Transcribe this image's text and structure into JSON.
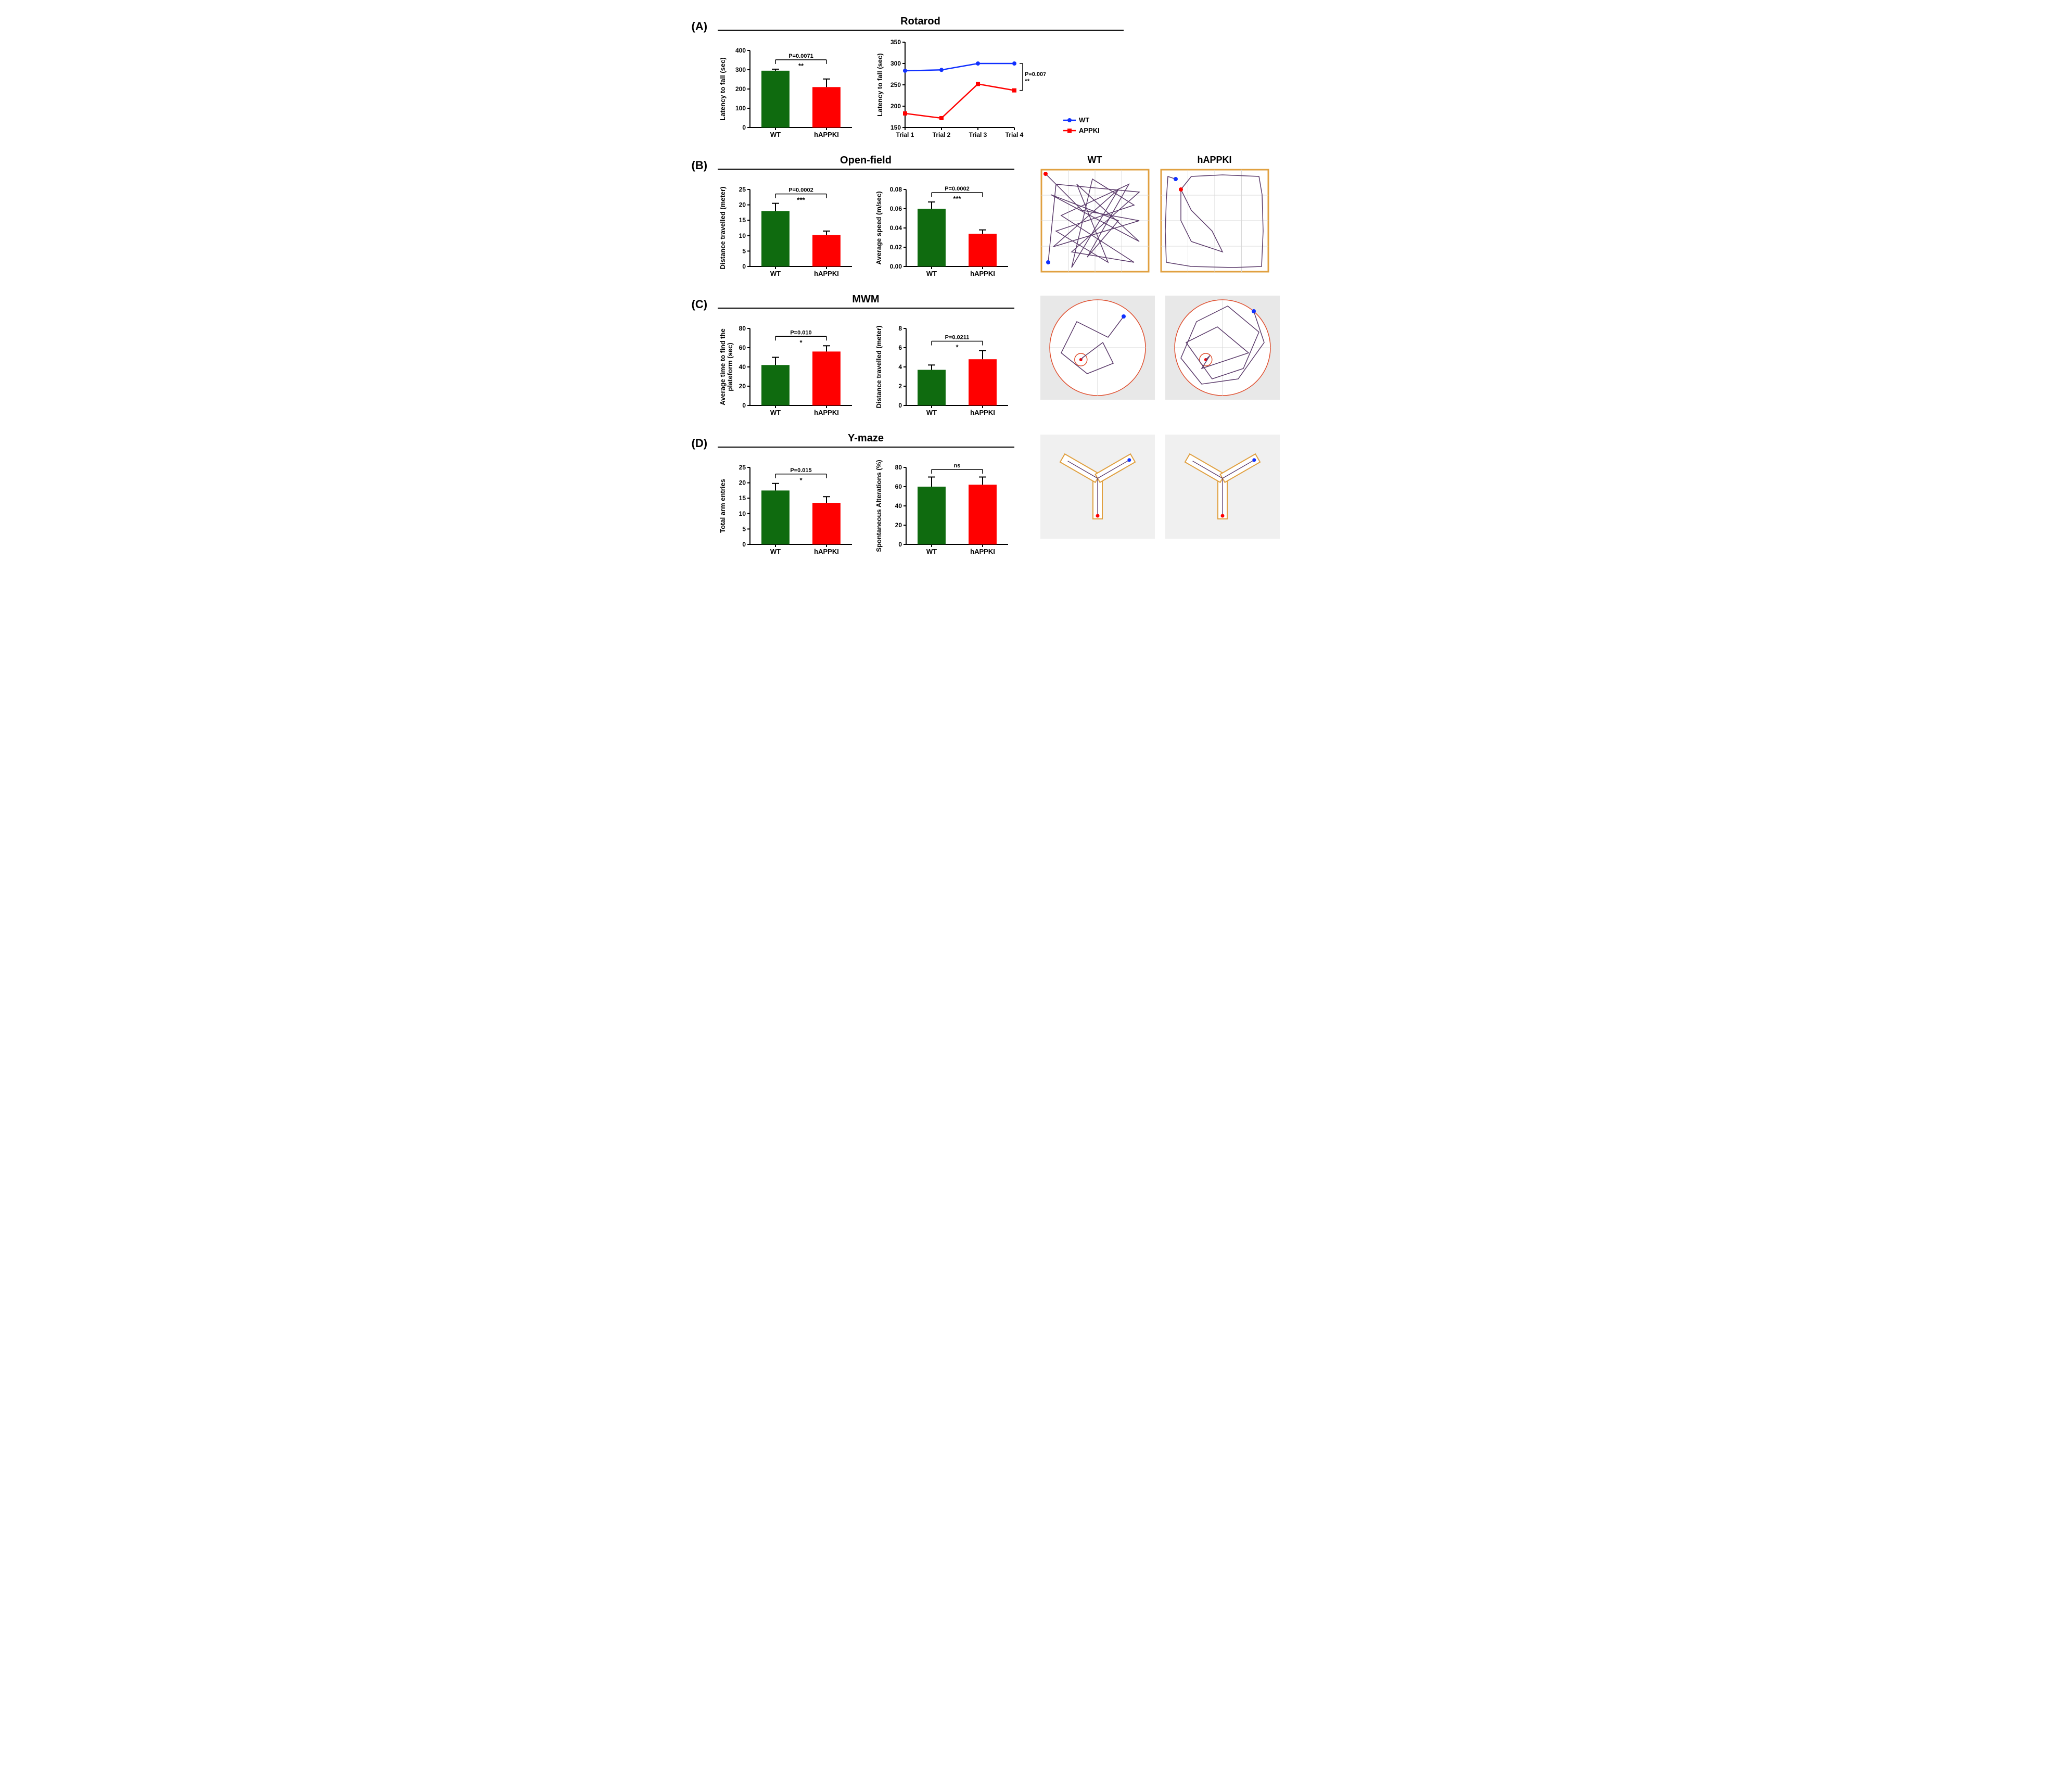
{
  "colors": {
    "wt_bar": "#0f6b0f",
    "ko_bar": "#ff0000",
    "wt_line": "#1030ff",
    "ko_line": "#ff0000",
    "axis": "#000000",
    "tick": "#000000",
    "error_bar": "#000000",
    "track_path": "#5a3a6a",
    "track_border": "#e0a040",
    "track_bg": "#ffffff",
    "track_bg_gray": "#e8e8e8",
    "grid_light": "#d8d8d8",
    "start_dot": "#ff0000",
    "end_dot": "#1030ff"
  },
  "fonts": {
    "panel_label": 22,
    "title": 20,
    "axis_label": 14,
    "tick": 12,
    "pval": 12
  },
  "panels": {
    "A": {
      "title": "Rotarod",
      "bar": {
        "ylabel": "Latency to fall (sec)",
        "ylim": [
          0,
          400
        ],
        "ytick_step": 100,
        "categories": [
          "WT",
          "hAPPKI"
        ],
        "values": [
          295,
          210
        ],
        "errors": [
          8,
          42
        ],
        "pvalue": "P=0.0071",
        "stars": "**"
      },
      "line": {
        "ylabel": "Latency to fall (sec)",
        "ylim": [
          150,
          350
        ],
        "ytick_step": 50,
        "xcats": [
          "Trial 1",
          "Trial 2",
          "Trial 3",
          "Trial 4"
        ],
        "series": [
          {
            "name": "WT",
            "color_key": "wt_line",
            "marker": "circle",
            "values": [
              283,
              285,
              300,
              300
            ]
          },
          {
            "name": "APPKI",
            "color_key": "ko_line",
            "marker": "square",
            "values": [
              183,
              172,
              252,
              237
            ]
          }
        ],
        "pvalue": "P=0.0072",
        "stars": "**",
        "legend": [
          {
            "label": "WT",
            "color_key": "wt_line",
            "marker": "circle"
          },
          {
            "label": "APPKI",
            "color_key": "ko_line",
            "marker": "square"
          }
        ]
      }
    },
    "B": {
      "title": "Open-field",
      "bar1": {
        "ylabel": "Distance travelled (meter)",
        "ylim": [
          0,
          25
        ],
        "ytick_step": 5,
        "categories": [
          "WT",
          "hAPPKI"
        ],
        "values": [
          18.0,
          10.2
        ],
        "errors": [
          2.5,
          1.3
        ],
        "pvalue": "P=0.0002",
        "stars": "***"
      },
      "bar2": {
        "ylabel": "Average speed (m/sec)",
        "ylim": [
          0,
          0.08
        ],
        "ytick_step": 0.02,
        "decimals": 2,
        "categories": [
          "WT",
          "hAPPKI"
        ],
        "values": [
          0.06,
          0.034
        ],
        "errors": [
          0.007,
          0.004
        ],
        "pvalue": "P=0.0002",
        "stars": "***"
      },
      "tracks": {
        "wt_title": "WT",
        "ko_title": "hAPPKI"
      }
    },
    "C": {
      "title": "MWM",
      "bar1": {
        "ylabel": "Average time to find the\nplateform (sec)",
        "ylim": [
          0,
          80
        ],
        "ytick_step": 20,
        "categories": [
          "WT",
          "hAPPKI"
        ],
        "values": [
          42,
          56
        ],
        "errors": [
          8,
          6
        ],
        "pvalue": "P=0.010",
        "stars": "*"
      },
      "bar2": {
        "ylabel": "Distance travelled (meter)",
        "ylim": [
          0,
          8
        ],
        "ytick_step": 2,
        "categories": [
          "WT",
          "hAPPKI"
        ],
        "values": [
          3.7,
          4.8
        ],
        "errors": [
          0.5,
          0.9
        ],
        "pvalue": "P=0.0211",
        "stars": "*"
      }
    },
    "D": {
      "title": "Y-maze",
      "bar1": {
        "ylabel": "Total arm entries",
        "ylim": [
          0,
          25
        ],
        "ytick_step": 5,
        "categories": [
          "WT",
          "hAPPKI"
        ],
        "values": [
          17.5,
          13.5
        ],
        "errors": [
          2.3,
          2.0
        ],
        "pvalue": "P=0.015",
        "stars": "*"
      },
      "bar2": {
        "ylabel": "Spontaneous Alterations (%)",
        "ylim": [
          0,
          80
        ],
        "ytick_step": 20,
        "categories": [
          "WT",
          "hAPPKI"
        ],
        "values": [
          60,
          62
        ],
        "errors": [
          10,
          8
        ],
        "pvalue": "ns",
        "stars": ""
      }
    }
  }
}
